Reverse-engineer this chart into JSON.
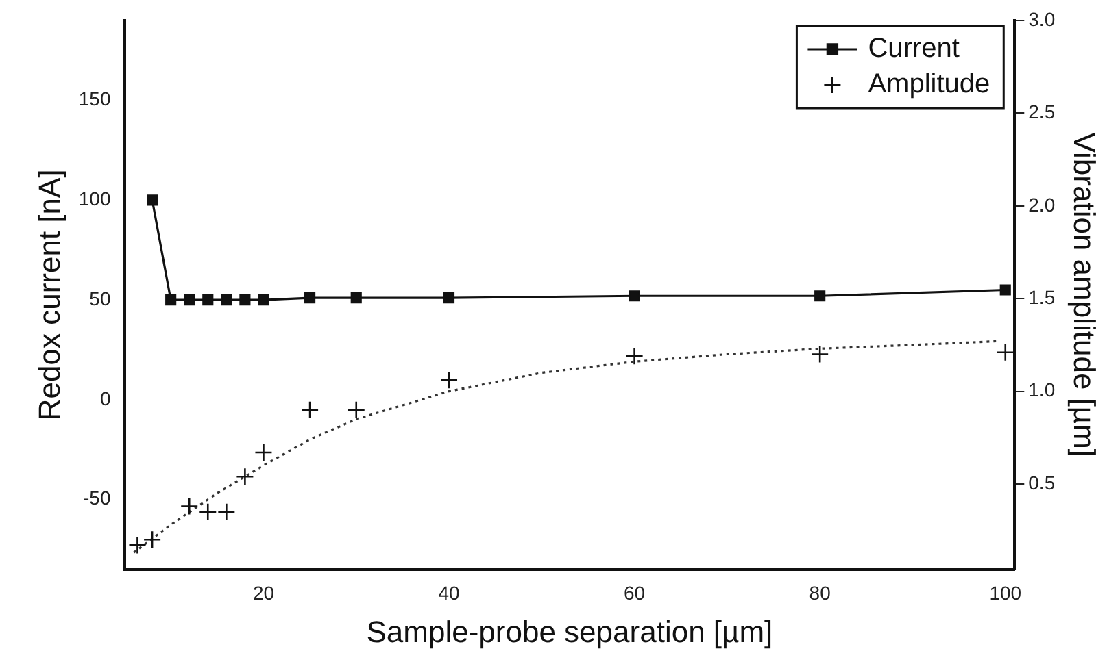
{
  "chart_data": {
    "type": "line",
    "xlabel": "Sample-probe separation [µm]",
    "ylabel": "Redox current [nA]",
    "y2label": "Vibration amplitude [µm]",
    "xlim": [
      5,
      101
    ],
    "xticks": [
      20,
      40,
      60,
      80,
      100
    ],
    "ylim": [
      -85,
      190
    ],
    "yticks": [
      -50,
      0,
      50,
      100,
      150
    ],
    "y2lim": [
      0.04,
      3.0
    ],
    "y2ticks": [
      {
        "value": 0.5,
        "label": "0.5"
      },
      {
        "value": 1,
        "label": "1.0"
      },
      {
        "value": 1.5,
        "label": "1.5"
      },
      {
        "value": 2,
        "label": "2.0"
      },
      {
        "value": 2.5,
        "label": "2.5"
      },
      {
        "value": 3,
        "label": "3.0"
      }
    ],
    "grid": false,
    "legend": "top right",
    "series": [
      {
        "name": "Current",
        "type": "line",
        "color": "#111111",
        "marker": "square",
        "line_style": "solid",
        "x": [
          8,
          10,
          12,
          14,
          16,
          18,
          20,
          25,
          30,
          40,
          60,
          80,
          100
        ],
        "values": [
          100,
          50,
          50,
          50,
          50,
          50,
          50,
          51,
          51,
          51,
          52,
          52,
          55
        ]
      },
      {
        "name": "Amplitude",
        "type": "scatter",
        "axis": "y2",
        "color": "#111111",
        "marker": "cross",
        "x": [
          6.4,
          8,
          12,
          14,
          16,
          18,
          20,
          25,
          30,
          40,
          60,
          80,
          100
        ],
        "values": [
          0.17,
          0.2,
          0.38,
          0.35,
          0.35,
          0.54,
          0.67,
          0.9,
          0.9,
          1.06,
          1.19,
          1.2,
          1.21
        ]
      },
      {
        "type": "line",
        "axis": "y2",
        "color": "#333333",
        "marker": "none",
        "line_style": "dotted",
        "x": [
          6,
          10,
          15,
          20,
          25,
          30,
          40,
          50,
          60,
          70,
          80,
          90,
          99
        ],
        "values": [
          0.13,
          0.28,
          0.45,
          0.6,
          0.74,
          0.85,
          1.0,
          1.1,
          1.16,
          1.2,
          1.23,
          1.25,
          1.27
        ]
      }
    ]
  }
}
